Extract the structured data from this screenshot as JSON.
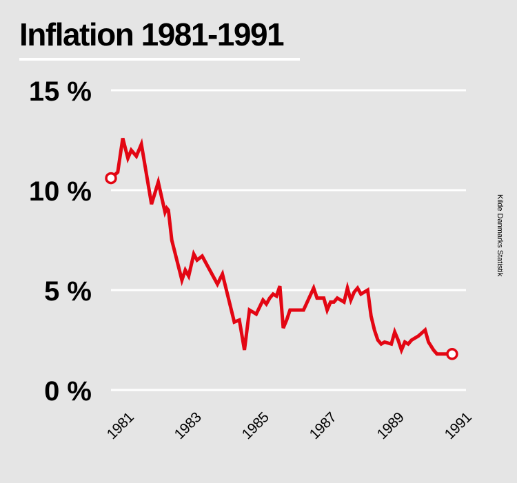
{
  "colors": {
    "background": "#e5e5e5",
    "line": "#e30613",
    "grid": "#ffffff",
    "text": "#000000",
    "title_rule": "#ffffff"
  },
  "chart_data": {
    "type": "line",
    "title": "Inflation 1981-1991",
    "source": "Kilde Danmarks Statistik",
    "xlabel": "",
    "ylabel": "",
    "xlim": [
      1981,
      1991
    ],
    "ylim": [
      0,
      15
    ],
    "yticks": [
      {
        "value": 0,
        "label": "0 %"
      },
      {
        "value": 5,
        "label": "5 %"
      },
      {
        "value": 10,
        "label": "10 %"
      },
      {
        "value": 15,
        "label": "15 %"
      }
    ],
    "xticks": [
      {
        "value": 1981,
        "label": "1981"
      },
      {
        "value": 1983,
        "label": "1983"
      },
      {
        "value": 1985,
        "label": "1985"
      },
      {
        "value": 1987,
        "label": "1987"
      },
      {
        "value": 1989,
        "label": "1989"
      },
      {
        "value": 1991,
        "label": "1991"
      }
    ],
    "grid": true,
    "legend": "none",
    "series": [
      {
        "name": "Inflation",
        "x": [
          1981.0,
          1981.2,
          1981.35,
          1981.5,
          1981.6,
          1981.75,
          1981.9,
          1982.2,
          1982.4,
          1982.6,
          1982.65,
          1982.7,
          1982.8,
          1983.1,
          1983.2,
          1983.3,
          1983.45,
          1983.55,
          1983.7,
          1984.15,
          1984.3,
          1984.65,
          1984.8,
          1984.95,
          1985.1,
          1985.2,
          1985.3,
          1985.5,
          1985.6,
          1985.7,
          1985.8,
          1985.9,
          1986.0,
          1986.1,
          1986.2,
          1986.3,
          1986.4,
          1986.5,
          1986.7,
          1987.0,
          1987.1,
          1987.2,
          1987.3,
          1987.4,
          1987.5,
          1987.6,
          1987.7,
          1987.8,
          1987.9,
          1988.0,
          1988.1,
          1988.2,
          1988.3,
          1988.4,
          1988.5,
          1988.6,
          1988.7,
          1988.8,
          1988.9,
          1989.0,
          1989.1,
          1989.3,
          1989.4,
          1989.5,
          1989.6,
          1989.7,
          1989.8,
          1989.9,
          1990.0,
          1990.1,
          1990.3,
          1990.4,
          1990.55,
          1990.65,
          1990.8,
          1990.9,
          1991.0,
          1991.1
        ],
        "values": [
          10.6,
          10.9,
          12.6,
          11.6,
          12.0,
          11.7,
          12.3,
          9.3,
          10.4,
          8.9,
          9.1,
          9.0,
          7.5,
          5.5,
          6.0,
          5.7,
          6.8,
          6.5,
          6.7,
          5.3,
          5.8,
          3.4,
          3.5,
          2.0,
          4.0,
          3.9,
          3.8,
          4.5,
          4.3,
          4.6,
          4.8,
          4.7,
          5.2,
          3.1,
          3.5,
          4.0,
          4.0,
          4.0,
          4.0,
          5.1,
          4.6,
          4.6,
          4.6,
          4.0,
          4.4,
          4.4,
          4.6,
          4.5,
          4.4,
          5.1,
          4.5,
          4.9,
          5.1,
          4.8,
          4.9,
          5.0,
          3.7,
          3.0,
          2.5,
          2.3,
          2.4,
          2.3,
          2.9,
          2.5,
          2.0,
          2.4,
          2.3,
          2.5,
          2.6,
          2.7,
          3.0,
          2.4,
          2.0,
          1.8,
          1.8,
          1.8,
          1.8,
          1.8
        ]
      }
    ]
  }
}
